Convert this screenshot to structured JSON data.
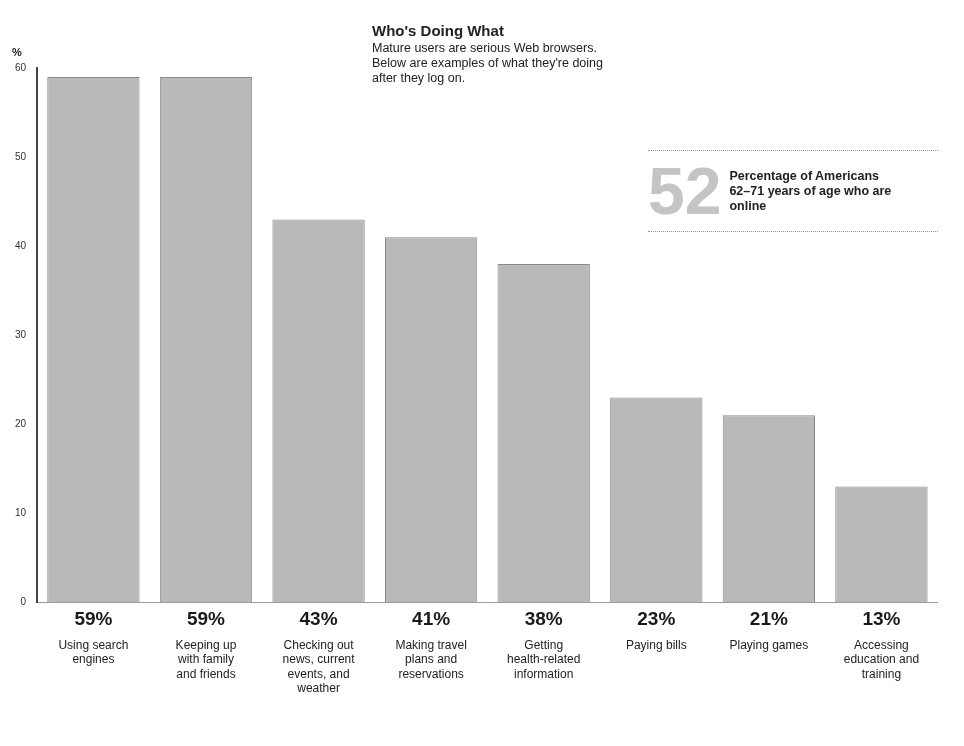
{
  "chart_data": {
    "type": "bar",
    "title": "Who's Doing What",
    "subtitle": "Mature users are serious Web browsers. Below are examples of what they're doing after they log on.",
    "y_label": "%",
    "categories": [
      "Using search engines",
      "Keeping up with family and friends",
      "Checking out news, current events, and weather",
      "Making travel plans and reservations",
      "Getting health-related information",
      "Paying bills",
      "Playing games",
      "Accessing education and training"
    ],
    "values": [
      59,
      59,
      43,
      41,
      38,
      23,
      21,
      13
    ],
    "value_labels": [
      "59%",
      "59%",
      "43%",
      "41%",
      "38%",
      "23%",
      "21%",
      "13%"
    ],
    "data_labels": true,
    "color": "#b9b9b9",
    "ylim": [
      0,
      60
    ],
    "yticks": [
      0,
      10,
      20,
      30,
      40,
      50,
      60
    ],
    "grid": false,
    "annotation": {
      "value": 52,
      "text": "Percentage of Americans 62–71 years of age who are online"
    }
  }
}
